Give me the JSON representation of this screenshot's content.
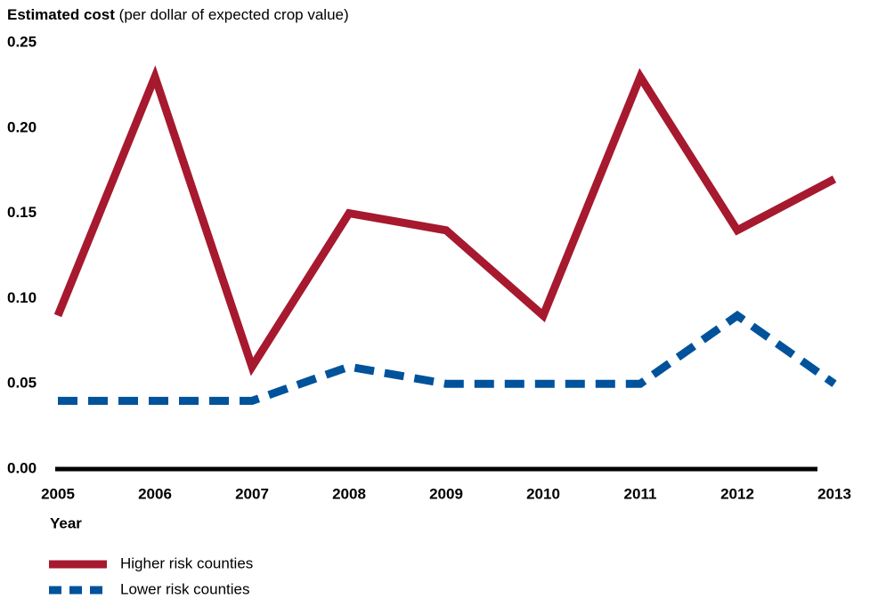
{
  "chart_data": {
    "type": "line",
    "title": "Estimated cost",
    "subtitle": "(per dollar of expected crop value)",
    "x_label": "Year",
    "x": [
      2005,
      2006,
      2007,
      2008,
      2009,
      2010,
      2011,
      2012,
      2013
    ],
    "xlim": [
      2005,
      2013
    ],
    "xticks": [
      2005,
      2006,
      2007,
      2008,
      2009,
      2010,
      2011,
      2012,
      2013
    ],
    "ylim": [
      0,
      0.25
    ],
    "yticks": [
      {
        "value": 0,
        "label": "0.00"
      },
      0.05,
      {
        "value": 0.1,
        "label": "0.10"
      },
      0.15,
      {
        "value": 0.2,
        "label": "0.20"
      },
      0.25
    ],
    "grid": false,
    "legend": "bottom-left",
    "series": [
      {
        "name": "Higher risk counties",
        "color": "#a6192e",
        "style": "solid",
        "values": [
          0.09,
          0.23,
          0.06,
          0.15,
          0.14,
          0.09,
          0.23,
          0.14,
          0.17
        ]
      },
      {
        "name": "Lower risk counties",
        "color": "#00529b",
        "style": "dashed",
        "values": [
          0.04,
          0.04,
          0.04,
          0.06,
          0.05,
          0.05,
          0.05,
          0.09,
          0.05
        ]
      }
    ]
  }
}
